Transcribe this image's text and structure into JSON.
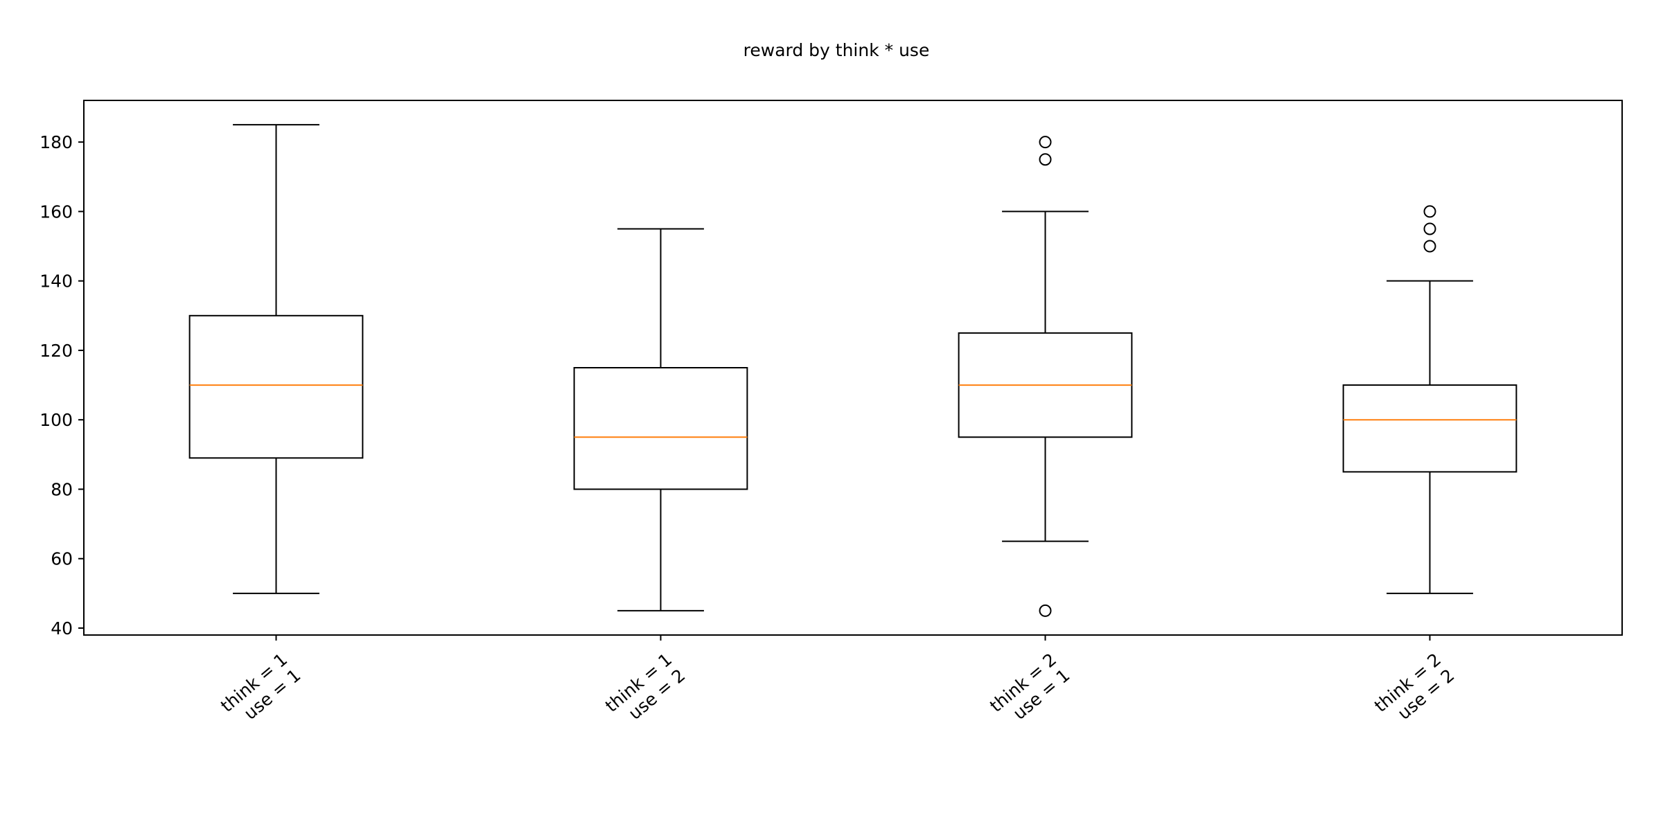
{
  "chart_data": {
    "type": "box",
    "title": "reward by think * use",
    "xlabel": "",
    "ylabel": "",
    "ylim": [
      38,
      192
    ],
    "yticks": [
      40,
      60,
      80,
      100,
      120,
      140,
      160,
      180
    ],
    "grid": false,
    "colors": {
      "box": "#000000",
      "median": "#ff7f0e",
      "background": "#ffffff"
    },
    "categories": [
      {
        "line1": "think = 1",
        "line2": "use = 1"
      },
      {
        "line1": "think = 1",
        "line2": "use = 2"
      },
      {
        "line1": "think = 2",
        "line2": "use = 1"
      },
      {
        "line1": "think = 2",
        "line2": "use = 2"
      }
    ],
    "boxes": [
      {
        "whisker_low": 50,
        "q1": 89,
        "median": 110,
        "q3": 130,
        "whisker_high": 185,
        "outliers": []
      },
      {
        "whisker_low": 45,
        "q1": 80,
        "median": 95,
        "q3": 115,
        "whisker_high": 155,
        "outliers": []
      },
      {
        "whisker_low": 65,
        "q1": 95,
        "median": 110,
        "q3": 125,
        "whisker_high": 160,
        "outliers": [
          180,
          175,
          45
        ]
      },
      {
        "whisker_low": 50,
        "q1": 85,
        "median": 100,
        "q3": 110,
        "whisker_high": 140,
        "outliers": [
          160,
          155,
          150
        ]
      }
    ]
  }
}
